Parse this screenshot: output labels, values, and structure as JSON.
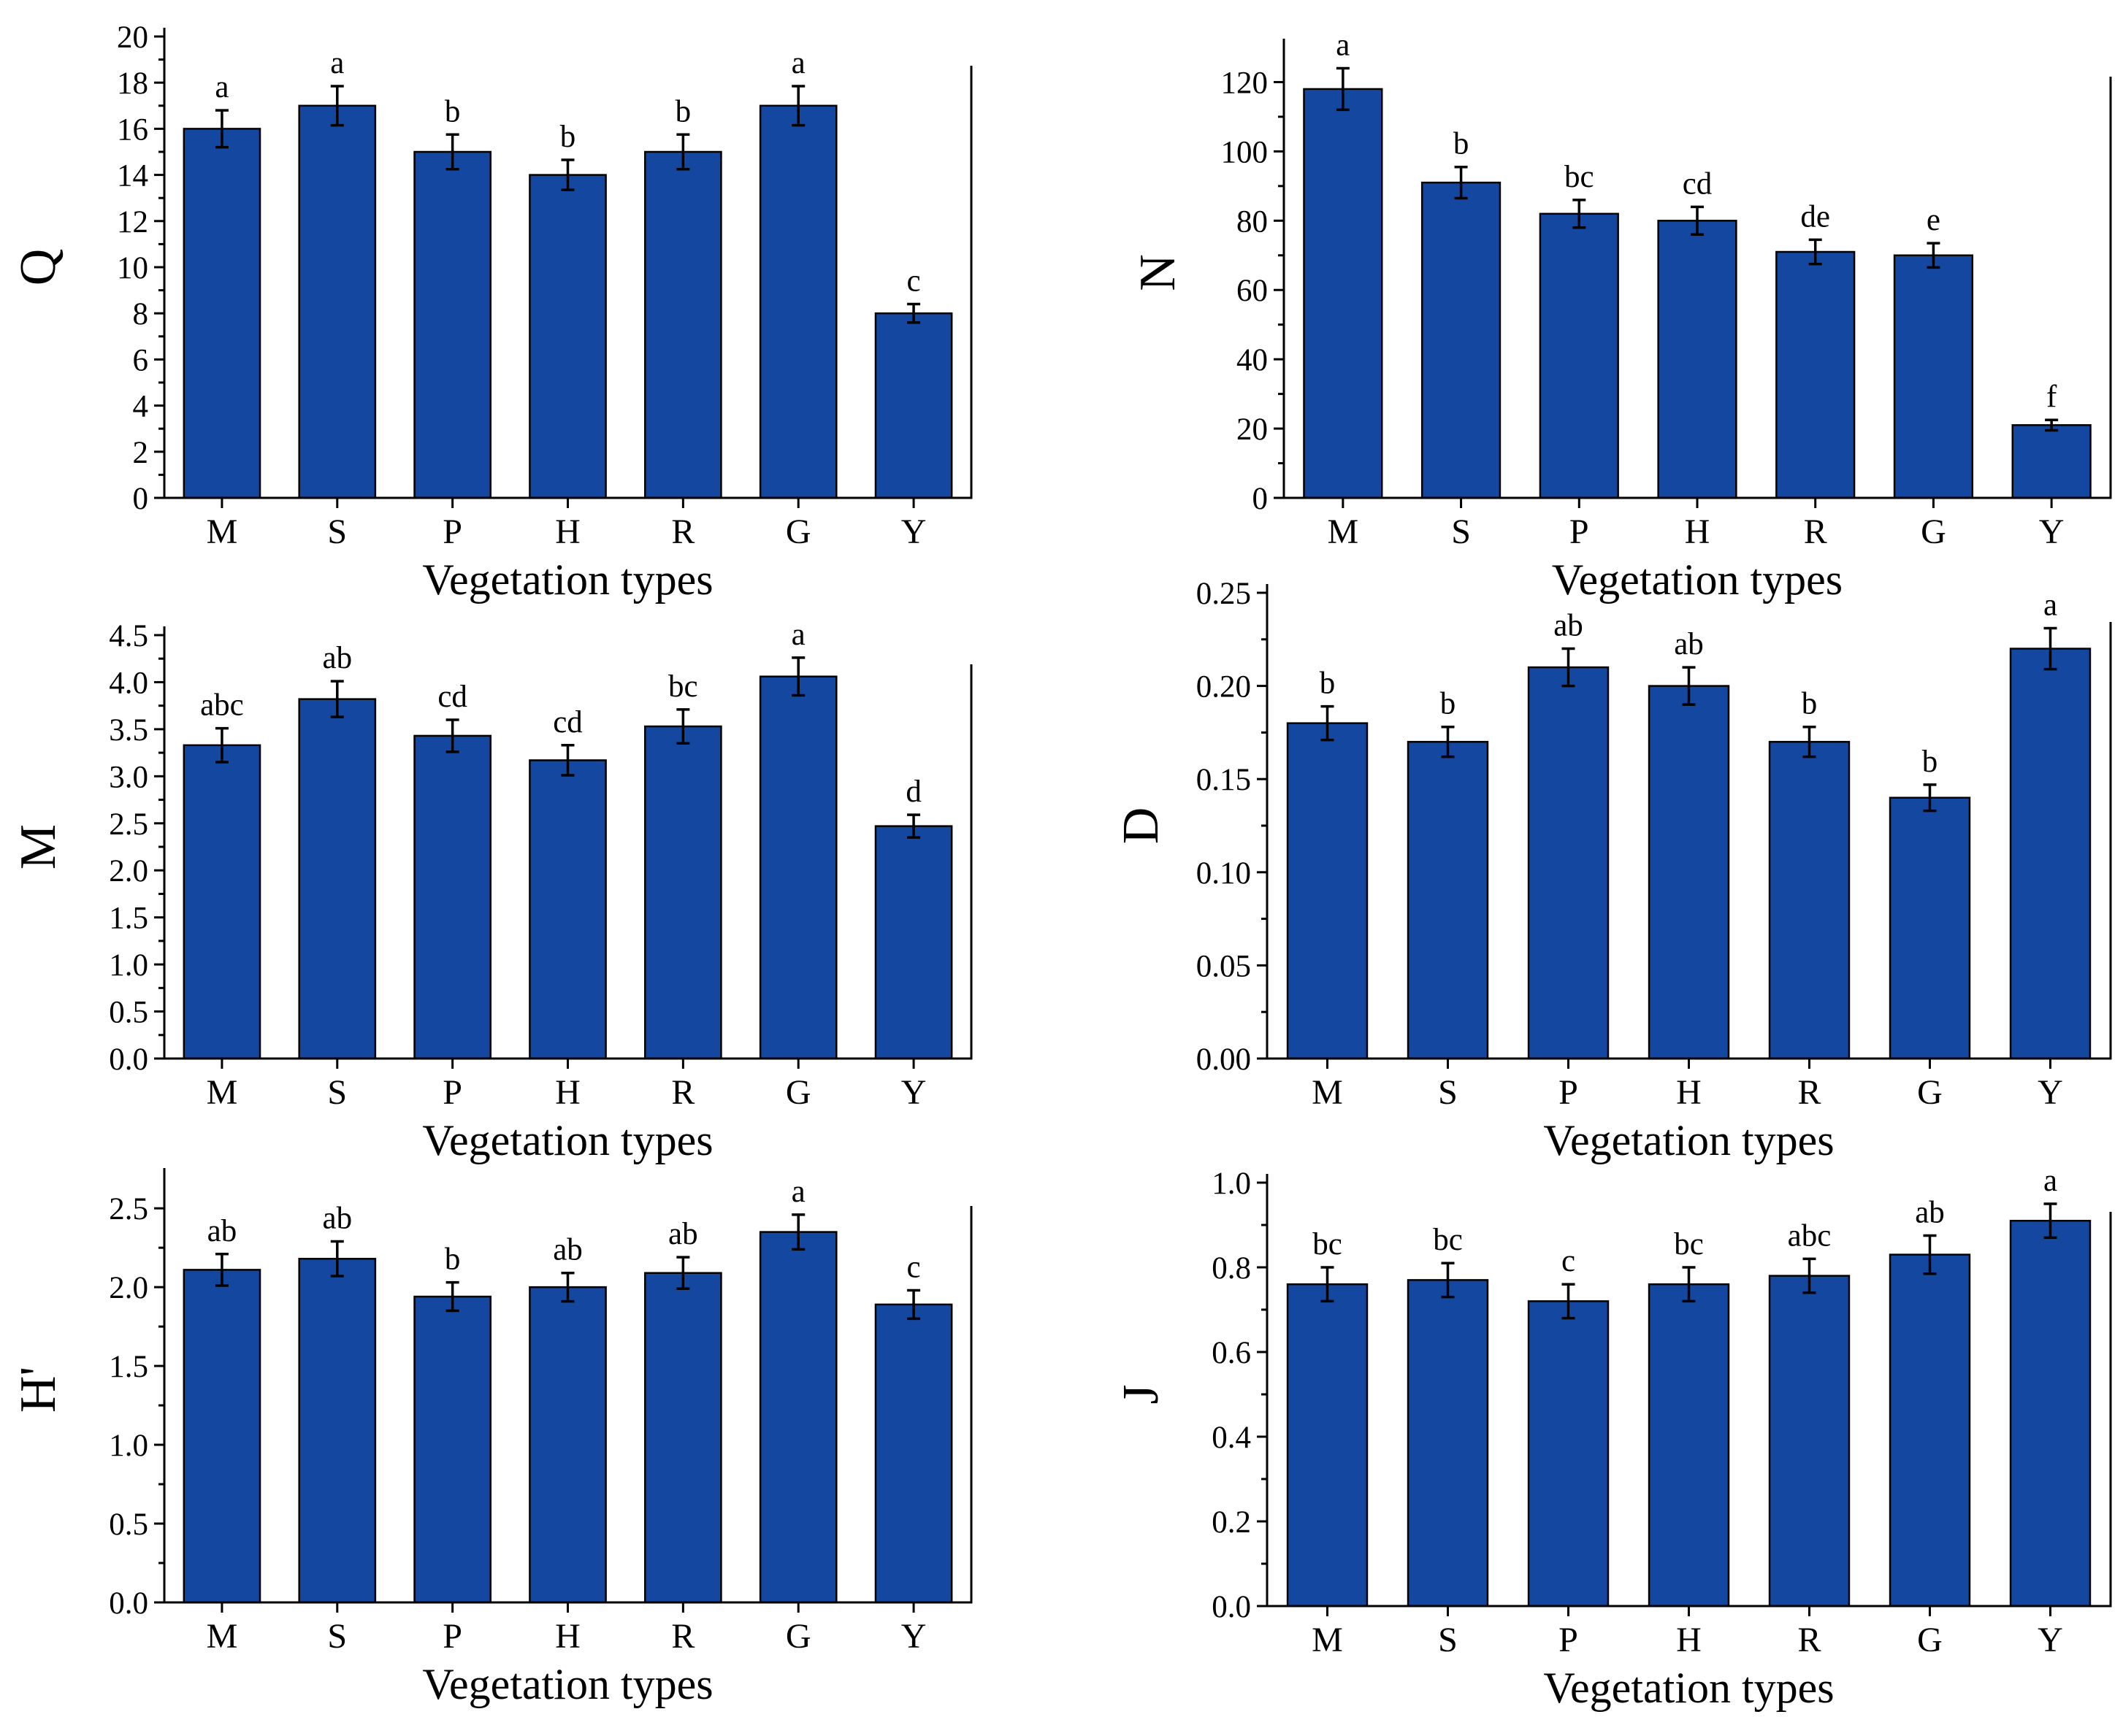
{
  "chart_data": [
    {
      "type": "bar",
      "panel": "top-left",
      "title": "",
      "xlabel": "Vegetation types",
      "ylabel": "Q",
      "ylim": [
        0,
        20
      ],
      "yticks": [
        0,
        2,
        4,
        6,
        8,
        10,
        12,
        14,
        16,
        18,
        20
      ],
      "ytick_labels": [
        "0",
        "2",
        "4",
        "6",
        "8",
        "10",
        "12",
        "14",
        "16",
        "18",
        "20"
      ],
      "categories": [
        "M",
        "S",
        "P",
        "H",
        "R",
        "G",
        "Y"
      ],
      "values": [
        16,
        17,
        15,
        14,
        15,
        17,
        8
      ],
      "errors": [
        0.8,
        0.85,
        0.75,
        0.65,
        0.75,
        0.85,
        0.4
      ],
      "significance": [
        "a",
        "a",
        "b",
        "b",
        "b",
        "a",
        "c"
      ],
      "bar_color": "#1448A0"
    },
    {
      "type": "bar",
      "panel": "top-right",
      "title": "",
      "xlabel": "Vegetation types",
      "ylabel": "N",
      "ylim": [
        0,
        130
      ],
      "yticks": [
        0,
        20,
        40,
        60,
        80,
        100,
        120
      ],
      "ytick_labels": [
        "0",
        "20",
        "40",
        "60",
        "80",
        "100",
        "120"
      ],
      "categories": [
        "M",
        "S",
        "P",
        "H",
        "R",
        "G",
        "Y"
      ],
      "values": [
        118,
        91,
        82,
        80,
        71,
        70,
        21
      ],
      "errors": [
        6,
        4.5,
        4,
        4,
        3.5,
        3.5,
        1.5
      ],
      "significance": [
        "a",
        "b",
        "bc",
        "cd",
        "de",
        "e",
        "f"
      ],
      "bar_color": "#1448A0"
    },
    {
      "type": "bar",
      "panel": "middle-left",
      "title": "",
      "xlabel": "Vegetation types",
      "ylabel": "M",
      "ylim": [
        0,
        4.5
      ],
      "yticks": [
        0,
        0.5,
        1,
        1.5,
        2,
        2.5,
        3,
        3.5,
        4,
        4.5
      ],
      "ytick_labels": [
        "0.0",
        "0.5",
        "1.0",
        "1.5",
        "2.0",
        "2.5",
        "3.0",
        "3.5",
        "4.0",
        "4.5"
      ],
      "categories": [
        "M",
        "S",
        "P",
        "H",
        "R",
        "G",
        "Y"
      ],
      "values": [
        3.33,
        3.82,
        3.43,
        3.17,
        3.53,
        4.06,
        2.47
      ],
      "errors": [
        0.18,
        0.19,
        0.17,
        0.16,
        0.18,
        0.2,
        0.12
      ],
      "significance": [
        "abc",
        "ab",
        "cd",
        "cd",
        "bc",
        "a",
        "d"
      ],
      "bar_color": "#1448A0"
    },
    {
      "type": "bar",
      "panel": "middle-right",
      "title": "",
      "xlabel": "Vegetation types",
      "ylabel": "D",
      "ylim": [
        0,
        0.25
      ],
      "yticks": [
        0,
        0.05,
        0.1,
        0.15,
        0.2,
        0.25
      ],
      "ytick_labels": [
        "0.00",
        "0.05",
        "0.10",
        "0.15",
        "0.20",
        "0.25"
      ],
      "categories": [
        "M",
        "S",
        "P",
        "H",
        "R",
        "G",
        "Y"
      ],
      "values": [
        0.18,
        0.17,
        0.21,
        0.2,
        0.17,
        0.14,
        0.22
      ],
      "errors": [
        0.009,
        0.008,
        0.01,
        0.01,
        0.008,
        0.007,
        0.011
      ],
      "significance": [
        "b",
        "b",
        "ab",
        "ab",
        "b",
        "b",
        "a"
      ],
      "bar_color": "#1448A0"
    },
    {
      "type": "bar",
      "panel": "bottom-left",
      "title": "",
      "xlabel": "Vegetation types",
      "ylabel": "H'",
      "ylim": [
        0,
        2.7
      ],
      "yticks": [
        0,
        0.5,
        1,
        1.5,
        2,
        2.5
      ],
      "ytick_labels": [
        "0.0",
        "0.5",
        "1.0",
        "1.5",
        "2.0",
        "2.5"
      ],
      "categories": [
        "M",
        "S",
        "P",
        "H",
        "R",
        "G",
        "Y"
      ],
      "values": [
        2.11,
        2.18,
        1.94,
        2.0,
        2.09,
        2.35,
        1.89
      ],
      "errors": [
        0.1,
        0.11,
        0.09,
        0.09,
        0.1,
        0.11,
        0.09
      ],
      "significance": [
        "ab",
        "ab",
        "b",
        "ab",
        "ab",
        "a",
        "c"
      ],
      "bar_color": "#1448A0"
    },
    {
      "type": "bar",
      "panel": "bottom-right",
      "title": "",
      "xlabel": "Vegetation types",
      "ylabel": "J",
      "ylim": [
        0,
        1.0
      ],
      "yticks": [
        0,
        0.2,
        0.4,
        0.6,
        0.8,
        1
      ],
      "ytick_labels": [
        "0.0",
        "0.2",
        "0.4",
        "0.6",
        "0.8",
        "1.0"
      ],
      "categories": [
        "M",
        "S",
        "P",
        "H",
        "R",
        "G",
        "Y"
      ],
      "values": [
        0.76,
        0.77,
        0.72,
        0.76,
        0.78,
        0.83,
        0.91
      ],
      "errors": [
        0.04,
        0.04,
        0.04,
        0.04,
        0.04,
        0.045,
        0.04
      ],
      "significance": [
        "bc",
        "bc",
        "c",
        "bc",
        "abc",
        "ab",
        "a"
      ],
      "bar_color": "#1448A0"
    }
  ]
}
